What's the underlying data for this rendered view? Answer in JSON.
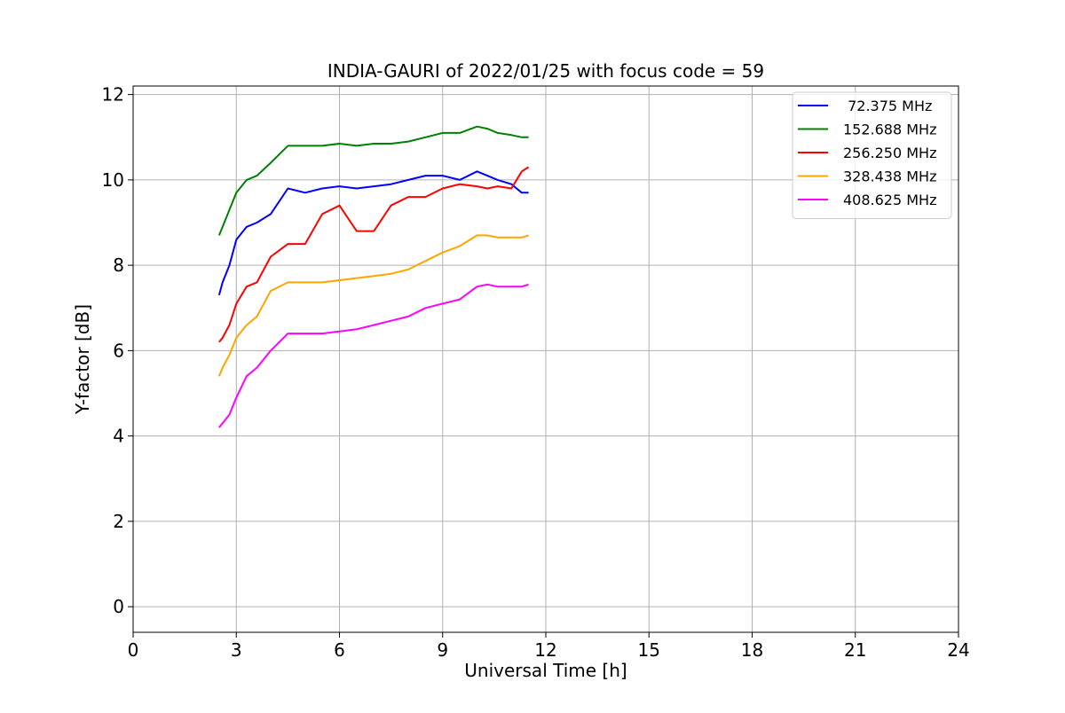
{
  "chart_data": {
    "type": "line",
    "title": "INDIA-GAURI of 2022/01/25 with focus code = 59",
    "xlabel": "Universal Time [h]",
    "ylabel": "Y-factor [dB]",
    "xlim": [
      0,
      24
    ],
    "ylim": [
      -0.6,
      12.2
    ],
    "xticks": [
      0,
      3,
      6,
      9,
      12,
      15,
      18,
      21,
      24
    ],
    "yticks": [
      0,
      2,
      4,
      6,
      8,
      10,
      12
    ],
    "grid": true,
    "legend_position": "top-right",
    "series": [
      {
        "name": "72.375 MHz",
        "label": " 72.375 MHz",
        "color": "#0000ff",
        "x": [
          2.5,
          2.6,
          2.8,
          3.0,
          3.3,
          3.6,
          4.0,
          4.5,
          5.0,
          5.5,
          6.0,
          6.5,
          7.0,
          7.5,
          8.0,
          8.5,
          9.0,
          9.5,
          10.0,
          10.3,
          10.6,
          11.0,
          11.3,
          11.5
        ],
        "values": [
          7.3,
          7.6,
          8.0,
          8.6,
          8.9,
          9.0,
          9.2,
          9.8,
          9.7,
          9.8,
          9.85,
          9.8,
          9.85,
          9.9,
          10.0,
          10.1,
          10.1,
          10.0,
          10.2,
          10.1,
          10.0,
          9.9,
          9.7,
          9.7
        ]
      },
      {
        "name": "152.688 MHz",
        "label": "152.688 MHz",
        "color": "#008000",
        "x": [
          2.5,
          2.6,
          2.8,
          3.0,
          3.3,
          3.6,
          4.0,
          4.5,
          5.0,
          5.5,
          6.0,
          6.5,
          7.0,
          7.5,
          8.0,
          8.5,
          9.0,
          9.5,
          10.0,
          10.3,
          10.6,
          11.0,
          11.3,
          11.5
        ],
        "values": [
          8.7,
          8.9,
          9.3,
          9.7,
          10.0,
          10.1,
          10.4,
          10.8,
          10.8,
          10.8,
          10.85,
          10.8,
          10.85,
          10.85,
          10.9,
          11.0,
          11.1,
          11.1,
          11.25,
          11.2,
          11.1,
          11.05,
          11.0,
          11.0
        ]
      },
      {
        "name": "256.250 MHz",
        "label": "256.250 MHz",
        "color": "#ff0000",
        "x": [
          2.5,
          2.6,
          2.8,
          3.0,
          3.3,
          3.6,
          4.0,
          4.5,
          5.0,
          5.5,
          6.0,
          6.5,
          7.0,
          7.5,
          8.0,
          8.5,
          9.0,
          9.5,
          10.0,
          10.3,
          10.6,
          11.0,
          11.3,
          11.5
        ],
        "values": [
          6.2,
          6.3,
          6.6,
          7.1,
          7.5,
          7.6,
          8.2,
          8.5,
          8.5,
          9.2,
          9.4,
          8.8,
          8.8,
          9.4,
          9.6,
          9.6,
          9.8,
          9.9,
          9.85,
          9.8,
          9.85,
          9.8,
          10.2,
          10.3
        ]
      },
      {
        "name": "328.438 MHz",
        "label": "328.438 MHz",
        "color": "#ffa500",
        "x": [
          2.5,
          2.6,
          2.8,
          3.0,
          3.3,
          3.6,
          4.0,
          4.5,
          5.0,
          5.5,
          6.0,
          6.5,
          7.0,
          7.5,
          8.0,
          8.5,
          9.0,
          9.5,
          10.0,
          10.3,
          10.6,
          11.0,
          11.3,
          11.5
        ],
        "values": [
          5.4,
          5.6,
          5.9,
          6.3,
          6.6,
          6.8,
          7.4,
          7.6,
          7.6,
          7.6,
          7.65,
          7.7,
          7.75,
          7.8,
          7.9,
          8.1,
          8.3,
          8.45,
          8.7,
          8.7,
          8.65,
          8.65,
          8.65,
          8.7
        ]
      },
      {
        "name": "408.625 MHz",
        "label": "408.625 MHz",
        "color": "#ff00ff",
        "x": [
          2.5,
          2.6,
          2.8,
          3.0,
          3.3,
          3.6,
          4.0,
          4.5,
          5.0,
          5.5,
          6.0,
          6.5,
          7.0,
          7.5,
          8.0,
          8.5,
          9.0,
          9.5,
          10.0,
          10.3,
          10.6,
          11.0,
          11.3,
          11.5
        ],
        "values": [
          4.2,
          4.3,
          4.5,
          4.9,
          5.4,
          5.6,
          6.0,
          6.4,
          6.4,
          6.4,
          6.45,
          6.5,
          6.6,
          6.7,
          6.8,
          7.0,
          7.1,
          7.2,
          7.5,
          7.55,
          7.5,
          7.5,
          7.5,
          7.55
        ]
      }
    ]
  }
}
